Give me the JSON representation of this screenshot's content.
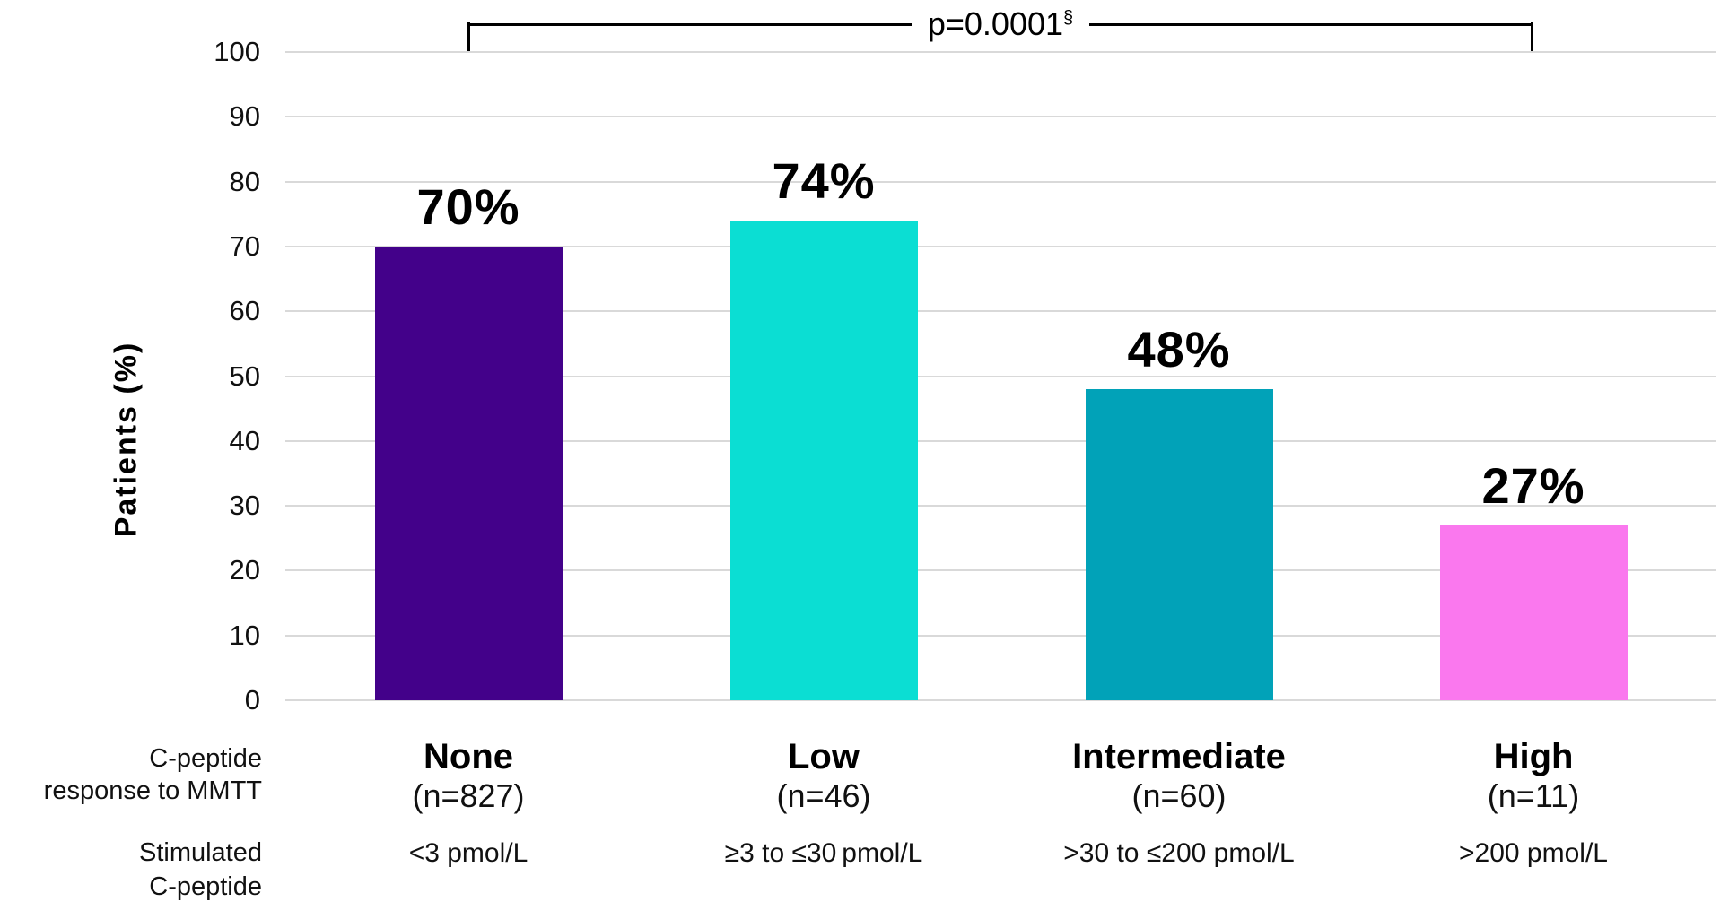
{
  "chart_data": {
    "type": "bar",
    "title": "",
    "ylabel": "Patients (%)",
    "xlabel": "",
    "ylim": [
      0,
      100
    ],
    "ytick_interval": 10,
    "yticks": [
      0,
      10,
      20,
      30,
      40,
      50,
      60,
      70,
      80,
      90,
      100
    ],
    "grid": true,
    "categories": [
      "None",
      "Low",
      "Intermediate",
      "High"
    ],
    "values": [
      70,
      74,
      48,
      27
    ],
    "value_labels": [
      "70%",
      "74%",
      "48%",
      "27%"
    ],
    "bar_colors": [
      "#43018A",
      "#0BDED3",
      "#01A2B8",
      "#FA78EE"
    ],
    "n_labels": [
      "(n=827)",
      "(n=46)",
      "(n=60)",
      "(n=11)"
    ],
    "stimulated_labels": [
      "<3 pmol/L",
      "≥3 to ≤30 pmol/L",
      ">30 to ≤200 pmol/L",
      ">200 pmol/L"
    ],
    "annotation": {
      "text": "p=0.0001",
      "superscript": "§",
      "spans_from": "None",
      "spans_to": "High"
    },
    "legend_position": "none",
    "colors": {
      "gridline": "#d9d9d9",
      "bracket": "#000000",
      "text": "#111111"
    }
  },
  "row_headers": {
    "response_line1": "C-peptide",
    "response_line2": "response to MMTT",
    "stimulated_line1": "Stimulated",
    "stimulated_line2": "C-peptide"
  }
}
